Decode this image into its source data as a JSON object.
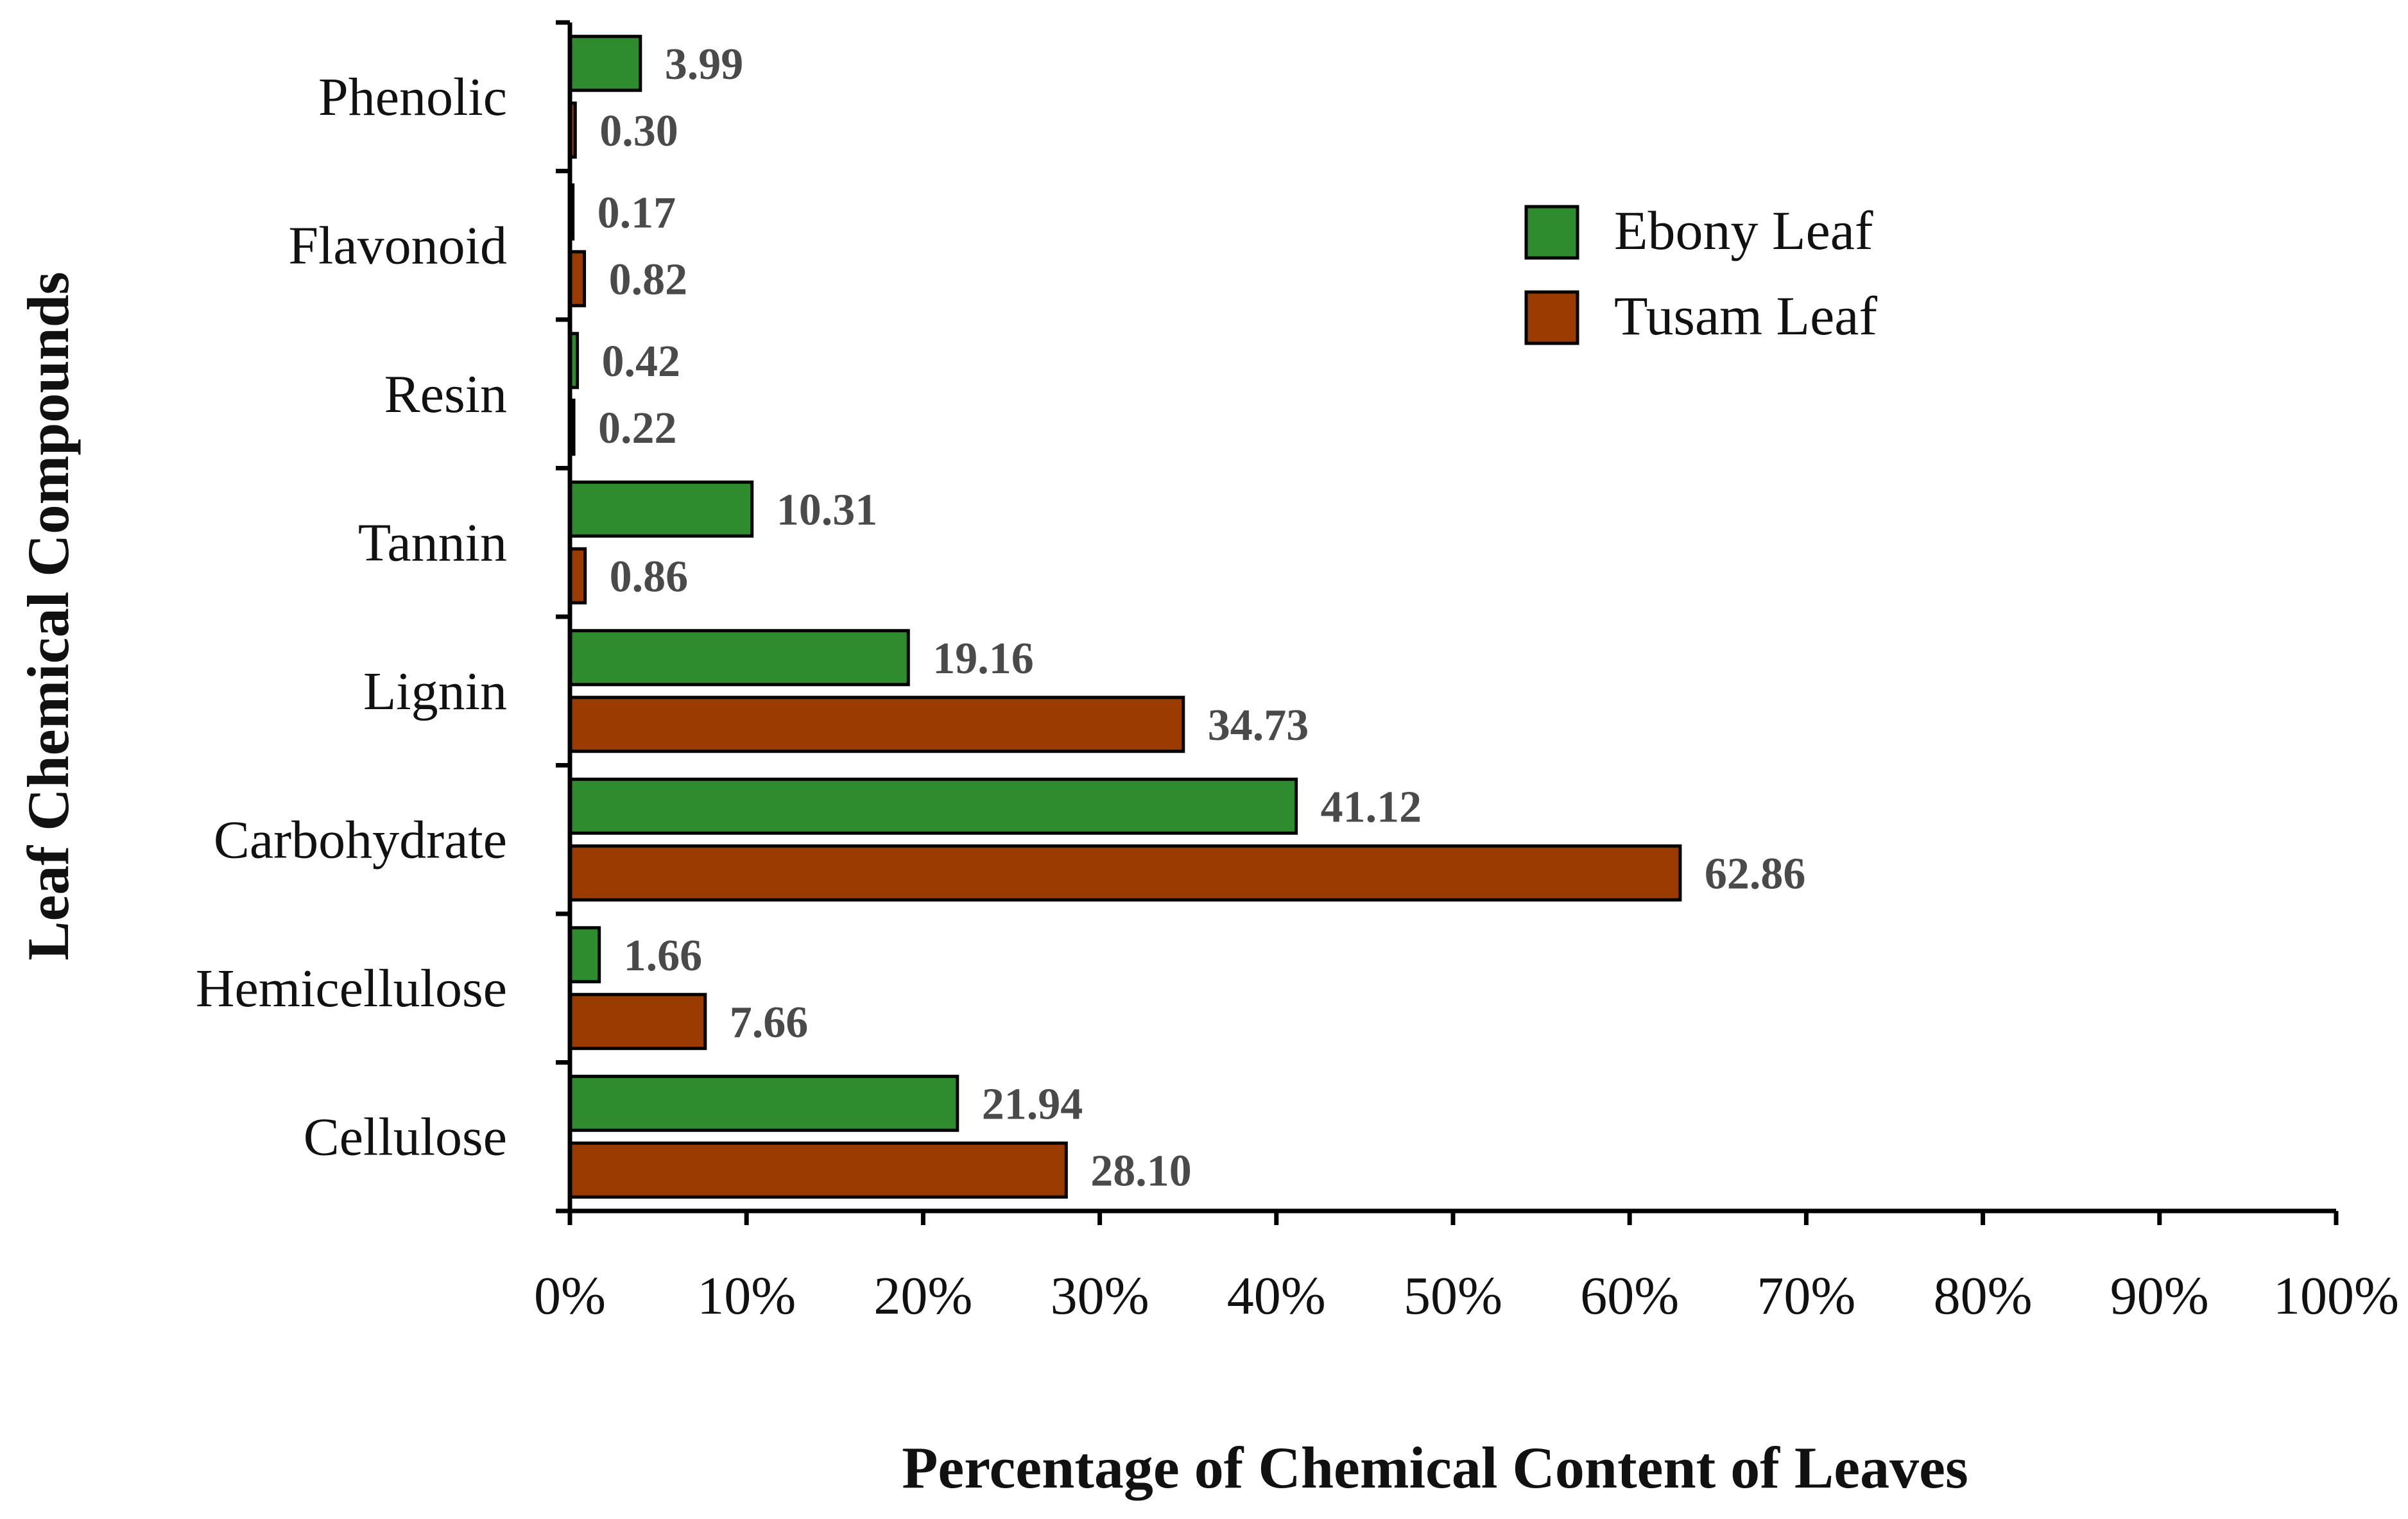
{
  "chart_data": {
    "type": "bar",
    "orientation": "horizontal",
    "title": "",
    "xlabel": "Percentage of Chemical Content of Leaves",
    "ylabel": "Leaf Chemical Compounds",
    "xlim": [
      0,
      100
    ],
    "x_ticks": [
      "0%",
      "10%",
      "20%",
      "30%",
      "40%",
      "50%",
      "60%",
      "70%",
      "80%",
      "90%",
      "100%"
    ],
    "categories": [
      "Phenolic",
      "Flavonoid",
      "Resin",
      "Tannin",
      "Lignin",
      "Carbohydrate",
      "Hemicellulose",
      "Cellulose"
    ],
    "series": [
      {
        "name": "Ebony Leaf",
        "color": "#2e8b2e",
        "values": [
          3.99,
          0.17,
          0.42,
          10.31,
          19.16,
          41.12,
          1.66,
          21.94
        ],
        "labels": [
          "3.99",
          "0.17",
          "0.42",
          "10.31",
          "19.16",
          "41.12",
          "1.66",
          "21.94"
        ]
      },
      {
        "name": "Tusam Leaf",
        "color": "#993a00",
        "values": [
          0.3,
          0.82,
          0.22,
          0.86,
          34.73,
          62.86,
          7.66,
          28.1
        ],
        "labels": [
          "0.30",
          "0.82",
          "0.22",
          "0.86",
          "34.73",
          "62.86",
          "7.66",
          "28.10"
        ]
      }
    ],
    "legend": {
      "position": "top-right",
      "entries": [
        "Ebony Leaf",
        "Tusam Leaf"
      ]
    },
    "grid": false
  }
}
